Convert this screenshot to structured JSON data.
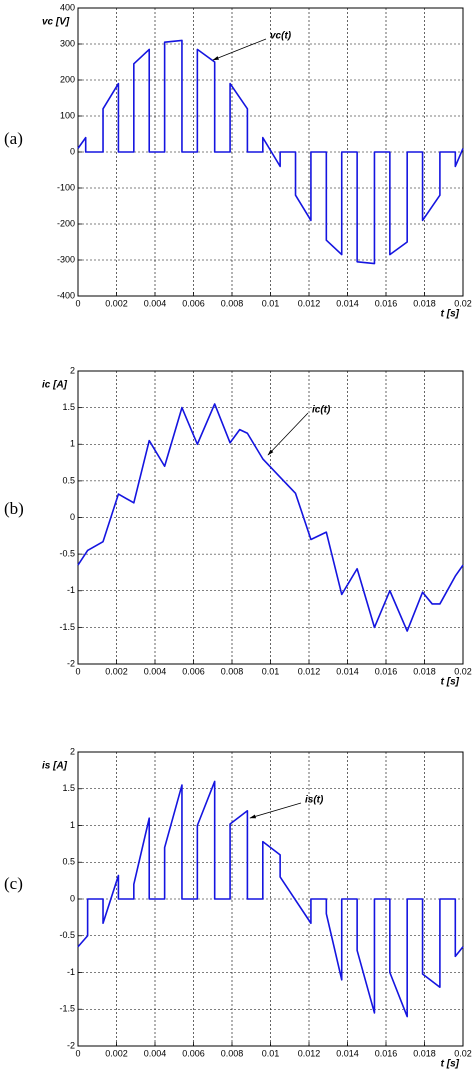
{
  "chart_data": [
    {
      "type": "line",
      "panel_label": "(a)",
      "y_label": "vc [V]",
      "x_label": "t [s]",
      "annotation": "vc(t)",
      "color": "#1515e0",
      "xlim": [
        0,
        0.02
      ],
      "xticks": [
        0,
        0.002,
        0.004,
        0.006,
        0.008,
        0.01,
        0.012,
        0.014,
        0.016,
        0.018,
        0.02
      ],
      "ylim": [
        -400,
        400
      ],
      "yticks": [
        -400,
        -300,
        -200,
        -100,
        0,
        100,
        200,
        300,
        400
      ],
      "grid": true,
      "x": [
        0,
        0.0004,
        0.0004,
        0.0013,
        0.0013,
        0.0021,
        0.0021,
        0.0029,
        0.0029,
        0.0037,
        0.0037,
        0.0045,
        0.0045,
        0.0054,
        0.0054,
        0.0062,
        0.0062,
        0.0071,
        0.0071,
        0.0079,
        0.0079,
        0.0088,
        0.0088,
        0.0096,
        0.0096,
        0.0105,
        0.0105,
        0.0113,
        0.0113,
        0.0121,
        0.0121,
        0.0129,
        0.0129,
        0.0137,
        0.0137,
        0.0145,
        0.0145,
        0.0154,
        0.0154,
        0.0162,
        0.0162,
        0.0171,
        0.0171,
        0.0179,
        0.0179,
        0.0188,
        0.0188,
        0.0196,
        0.0196,
        0.02
      ],
      "values": [
        10,
        40,
        0,
        0,
        120,
        190,
        0,
        0,
        245,
        285,
        0,
        0,
        305,
        310,
        0,
        0,
        285,
        250,
        0,
        0,
        190,
        120,
        0,
        0,
        40,
        -40,
        0,
        0,
        -120,
        -190,
        0,
        0,
        -245,
        -285,
        0,
        0,
        -305,
        -310,
        0,
        0,
        -285,
        -250,
        0,
        0,
        -190,
        -120,
        0,
        0,
        -40,
        10
      ]
    },
    {
      "type": "line",
      "panel_label": "(b)",
      "y_label": "ic [A]",
      "x_label": "t [s]",
      "annotation": "ic(t)",
      "color": "#1515e0",
      "xlim": [
        0,
        0.02
      ],
      "xticks": [
        0,
        0.002,
        0.004,
        0.006,
        0.008,
        0.01,
        0.012,
        0.014,
        0.016,
        0.018,
        0.02
      ],
      "ylim": [
        -2,
        2
      ],
      "yticks": [
        -2,
        -1.5,
        -1,
        -0.5,
        0,
        0.5,
        1,
        1.5,
        2
      ],
      "grid": true,
      "x": [
        0,
        0.0005,
        0.0013,
        0.0021,
        0.0029,
        0.0037,
        0.0045,
        0.0054,
        0.0062,
        0.0071,
        0.0079,
        0.0084,
        0.0088,
        0.0096,
        0.0105,
        0.0113,
        0.0121,
        0.0129,
        0.0137,
        0.0145,
        0.0154,
        0.0162,
        0.0171,
        0.0179,
        0.0184,
        0.0188,
        0.0196,
        0.02
      ],
      "values": [
        -0.65,
        -0.45,
        -0.33,
        0.32,
        0.2,
        1.05,
        0.7,
        1.5,
        1.0,
        1.55,
        1.02,
        1.2,
        1.15,
        0.8,
        0.55,
        0.33,
        -0.3,
        -0.2,
        -1.05,
        -0.7,
        -1.5,
        -1.0,
        -1.55,
        -1.02,
        -1.18,
        -1.18,
        -0.8,
        -0.65
      ]
    },
    {
      "type": "line",
      "panel_label": "(c)",
      "y_label": "is [A]",
      "x_label": "t [s]",
      "annotation": "is(t)",
      "color": "#1515e0",
      "xlim": [
        0,
        0.02
      ],
      "xticks": [
        0,
        0.002,
        0.004,
        0.006,
        0.008,
        0.01,
        0.012,
        0.014,
        0.016,
        0.018,
        0.02
      ],
      "ylim": [
        -2,
        2
      ],
      "yticks": [
        -2,
        -1.5,
        -1,
        -0.5,
        0,
        0.5,
        1,
        1.5,
        2
      ],
      "grid": true,
      "x": [
        0,
        0.0005,
        0.0005,
        0.0013,
        0.0013,
        0.0021,
        0.0021,
        0.0029,
        0.0029,
        0.0037,
        0.0037,
        0.0045,
        0.0045,
        0.0054,
        0.0054,
        0.0062,
        0.0062,
        0.0071,
        0.0071,
        0.0079,
        0.0079,
        0.0088,
        0.0088,
        0.0096,
        0.0096,
        0.0105,
        0.0105,
        0.0121,
        0.0121,
        0.0129,
        0.0129,
        0.0137,
        0.0137,
        0.0145,
        0.0145,
        0.0154,
        0.0154,
        0.0162,
        0.0162,
        0.0171,
        0.0171,
        0.0179,
        0.0179,
        0.0188,
        0.0188,
        0.0196,
        0.0196,
        0.02
      ],
      "values": [
        -0.65,
        -0.5,
        0,
        0,
        -0.33,
        0.32,
        0,
        0,
        0.2,
        1.1,
        0,
        0,
        0.7,
        1.55,
        0,
        0,
        1.0,
        1.6,
        0,
        0,
        1.02,
        1.2,
        0,
        0,
        0.78,
        0.6,
        0.3,
        -0.33,
        0,
        0,
        -0.2,
        -1.1,
        0,
        0,
        -0.7,
        -1.55,
        0,
        0,
        -1.0,
        -1.6,
        0,
        0,
        -1.02,
        -1.2,
        0,
        0,
        -0.78,
        -0.65
      ]
    }
  ]
}
